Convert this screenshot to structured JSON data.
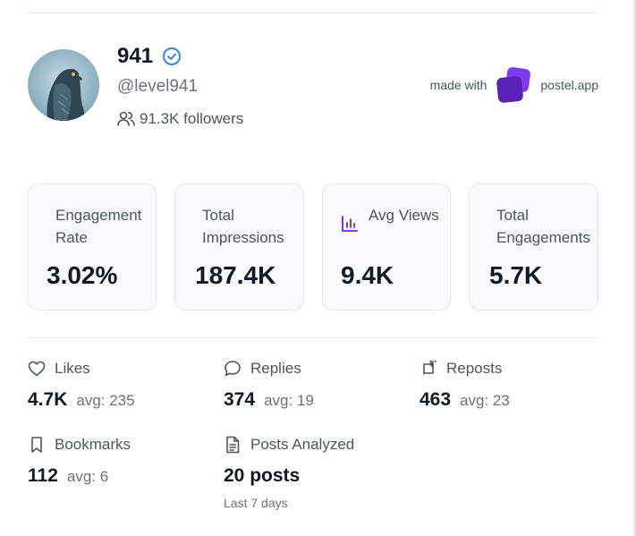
{
  "profile": {
    "name": "941",
    "handle": "@level941",
    "followers": "91.3K followers"
  },
  "branding": {
    "made_with": "made with",
    "app": "postel.app",
    "accent": "#6d28d9"
  },
  "stats": {
    "engagement_rate": {
      "label": "Engagement Rate",
      "value": "3.02%"
    },
    "total_impressions": {
      "label": "Total Impressions",
      "value": "187.4K"
    },
    "avg_views": {
      "label": "Avg Views",
      "value": "9.4K"
    },
    "total_engagements": {
      "label": "Total Engagements",
      "value": "5.7K"
    }
  },
  "metrics": {
    "likes": {
      "label": "Likes",
      "value": "4.7K",
      "avg": "avg: 235"
    },
    "replies": {
      "label": "Replies",
      "value": "374",
      "avg": "avg: 19"
    },
    "reposts": {
      "label": "Reposts",
      "value": "463",
      "avg": "avg: 23"
    },
    "bookmarks": {
      "label": "Bookmarks",
      "value": "112",
      "avg": "avg: 6"
    },
    "posts_analyzed": {
      "label": "Posts Analyzed",
      "value": "20 posts",
      "period": "Last 7 days"
    }
  },
  "colors": {
    "verified": "#3b82f6",
    "brand_purple": "#6d28d9"
  }
}
